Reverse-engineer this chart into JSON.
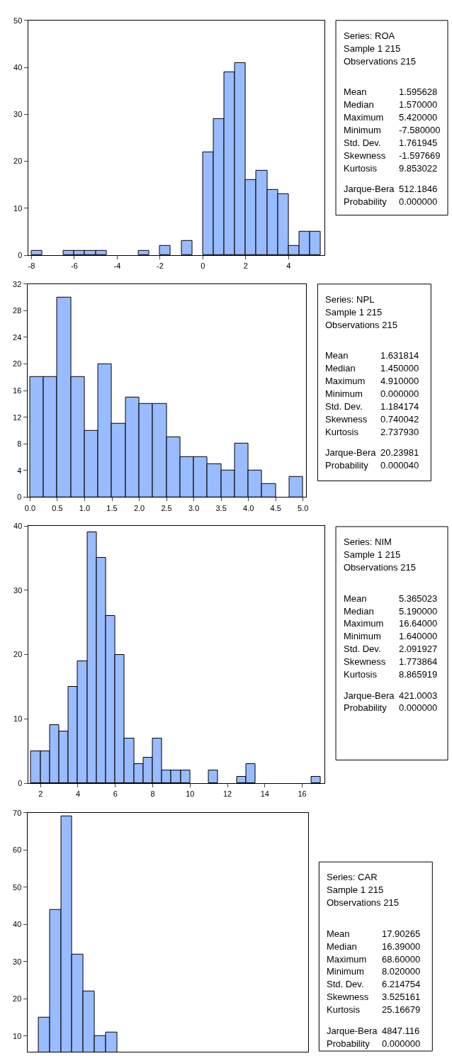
{
  "chart_data": [
    {
      "type": "histogram",
      "bins": [
        -8,
        -7.5,
        -7,
        -6.5,
        -6,
        -5.5,
        -5,
        -4.5,
        -4,
        -3.5,
        -3,
        -2.5,
        -2,
        -1.5,
        -1,
        -0.5,
        0,
        0.5,
        1,
        1.5,
        2,
        2.5,
        3,
        3.5,
        4,
        4.5,
        5,
        5.5
      ],
      "values": [
        1,
        0,
        0,
        1,
        1,
        1,
        1,
        0,
        0,
        0,
        1,
        0,
        2,
        0,
        3,
        0,
        22,
        29,
        39,
        41,
        16,
        18,
        14,
        13,
        2,
        5,
        5
      ],
      "color": "#99bbff",
      "xlim": [
        -8.16,
        5.68
      ],
      "xticks": [
        -8,
        -6,
        -4,
        -2,
        0,
        2,
        4
      ],
      "ylim": [
        0,
        50
      ],
      "yticks": [
        0,
        10,
        20,
        30,
        40,
        50
      ]
    },
    {
      "type": "other",
      "annotations": [
        "Series: ROA",
        "Sample 1 215",
        "Observations 215",
        "Mean",
        "1.595628",
        "Median",
        "1.570000",
        "Maximum",
        "5.420000",
        "Minimum",
        "-7.580000",
        "Std. Dev.",
        "1.761945",
        "Skewness",
        "-1.597669",
        "Kurtosis",
        "9.853022",
        "Jarque-Bera",
        "512.1846",
        "Probability",
        "0.000000"
      ]
    },
    {
      "type": "histogram",
      "bins": [
        0,
        0.25,
        0.5,
        0.75,
        1,
        1.25,
        1.5,
        1.75,
        2,
        2.25,
        2.5,
        2.75,
        3,
        3.25,
        3.5,
        3.75,
        4,
        4.25,
        4.5,
        4.75,
        5
      ],
      "values": [
        18,
        18,
        30,
        18,
        10,
        20,
        11,
        15,
        14,
        14,
        9,
        6,
        6,
        5,
        4,
        8,
        4,
        2,
        0,
        3
      ],
      "color": "#99bbff",
      "xlim": [
        -0.05,
        5.05
      ],
      "xticks": [
        {
          "value": 0,
          "label": "0.0"
        },
        {
          "value": 0.5,
          "label": "0.5"
        },
        {
          "value": 1,
          "label": "1.0"
        },
        {
          "value": 1.5,
          "label": "1.5"
        },
        {
          "value": 2,
          "label": "2.0"
        },
        {
          "value": 2.5,
          "label": "2.5"
        },
        {
          "value": 3,
          "label": "3.0"
        },
        {
          "value": 3.5,
          "label": "3.5"
        },
        {
          "value": 4,
          "label": "4.0"
        },
        {
          "value": 4.5,
          "label": "4.5"
        },
        {
          "value": 5,
          "label": "5.0"
        }
      ],
      "ylim": [
        0,
        32
      ],
      "yticks": [
        0,
        4,
        8,
        12,
        16,
        20,
        24,
        28,
        32
      ]
    },
    {
      "type": "other",
      "annotations": [
        "Series: NPL",
        "Sample 1 215",
        "Observations 215",
        "Mean",
        "1.631814",
        "Median",
        "1.450000",
        "Maximum",
        "4.910000",
        "Minimum",
        "0.000000",
        "Std. Dev.",
        "1.184174",
        "Skewness",
        "0.740042",
        "Kurtosis",
        "2.737930",
        "Jarque-Bera",
        "20.23981",
        "Probability",
        "0.000040"
      ]
    },
    {
      "type": "histogram",
      "bins": [
        1.5,
        2,
        2.5,
        3,
        3.5,
        4,
        4.5,
        5,
        5.5,
        6,
        6.5,
        7,
        7.5,
        8,
        8.5,
        9,
        9.5,
        10,
        10.5,
        11,
        11.5,
        12,
        12.5,
        13,
        13.5,
        14,
        14.5,
        15,
        15.5,
        16,
        16.5,
        17
      ],
      "values": [
        5,
        5,
        9,
        8,
        15,
        19,
        39,
        35,
        26,
        20,
        7,
        3,
        4,
        7,
        2,
        2,
        2,
        0,
        0,
        2,
        0,
        0,
        1,
        3,
        0,
        0,
        0,
        0,
        0,
        0,
        1
      ],
      "color": "#99bbff",
      "xlim": [
        1.33,
        17.2
      ],
      "xticks": [
        2,
        4,
        6,
        8,
        10,
        12,
        14,
        16
      ],
      "ylim": [
        0,
        40
      ],
      "yticks": [
        0,
        10,
        20,
        30,
        40
      ]
    },
    {
      "type": "other",
      "annotations": [
        "Series: NIM",
        "Sample 1 215",
        "Observations 215",
        "Mean",
        "5.365023",
        "Median",
        "5.190000",
        "Maximum",
        "16.64000",
        "Minimum",
        "1.640000",
        "Std. Dev.",
        "2.091927",
        "Skewness",
        "1.773864",
        "Kurtosis",
        "8.865919",
        "Jarque-Bera",
        "421.0003",
        "Probability",
        "0.000000"
      ]
    },
    {
      "type": "bar",
      "categories": [
        null,
        null,
        null,
        null,
        null,
        null,
        null,
        null,
        null,
        null,
        null,
        null,
        null,
        null,
        null,
        null,
        null,
        null,
        null,
        null,
        null,
        null,
        null,
        null,
        null
      ],
      "values": [
        null,
        15,
        44,
        69,
        32,
        22,
        10,
        11,
        null,
        null,
        null,
        null,
        null,
        null,
        null,
        null,
        null,
        null,
        null,
        null,
        null,
        null,
        null,
        null,
        null
      ],
      "color": "#99bbff",
      "ylim": [
        5.8,
        70
      ],
      "yticks": [
        10,
        20,
        30,
        40,
        50,
        60,
        70
      ],
      "tick_labels": "y"
    },
    {
      "type": "other",
      "annotations": [
        "Series: CAR",
        "Sample 1 215",
        "Observations 215",
        "Mean",
        "17.90265",
        "Median",
        "16.39000",
        "Maximum",
        "68.60000",
        "Minimum",
        "8.020000",
        "Std. Dev.",
        "6.214754",
        "Skewness",
        "3.525161",
        "Kurtosis",
        "25.16679",
        "Jarque-Bera",
        "4847.116",
        "Probability",
        "0.000000"
      ]
    }
  ]
}
